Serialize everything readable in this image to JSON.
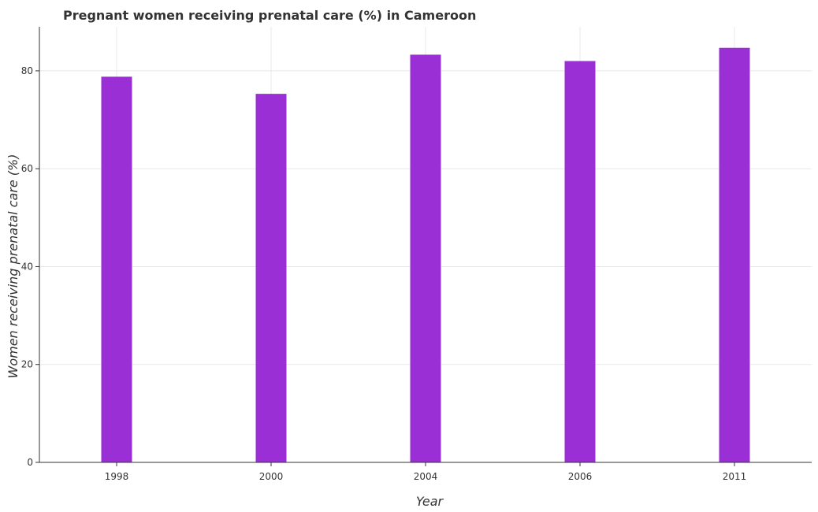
{
  "chart_data": {
    "type": "bar",
    "title": "Pregnant women receiving prenatal care (%) in Cameroon",
    "xlabel": "Year",
    "ylabel": "Women receiving prenatal care (%)",
    "categories": [
      "1998",
      "2000",
      "2004",
      "2006",
      "2011"
    ],
    "values": [
      78.8,
      75.3,
      83.3,
      82.0,
      84.7
    ],
    "ylim": [
      0,
      89
    ],
    "yticks": [
      0,
      20,
      40,
      60,
      80
    ],
    "grid": true,
    "legend": "none",
    "bar_color": "#9b2fd6"
  }
}
